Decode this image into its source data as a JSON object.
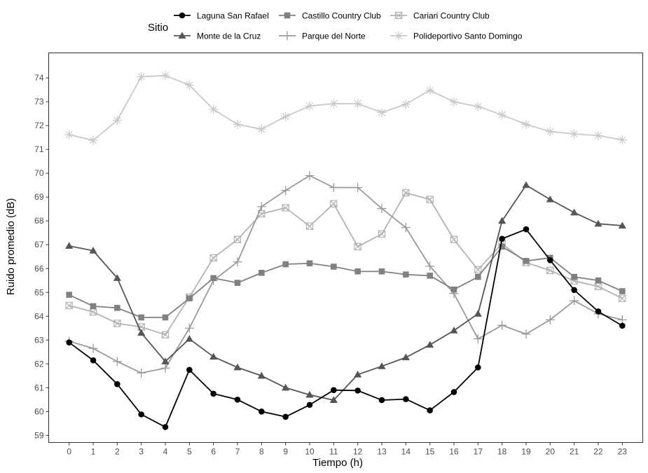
{
  "chart_data": {
    "type": "line",
    "title": "",
    "xlabel": "Tiempo (h)",
    "ylabel": "Ruido promedio (dB)",
    "legend_title": "Sitio",
    "legend_position": "top",
    "grid": false,
    "xlim": [
      -0.85,
      23.85
    ],
    "ylim": [
      58.7,
      75.05
    ],
    "x": [
      0,
      1,
      2,
      3,
      4,
      5,
      6,
      7,
      8,
      9,
      10,
      11,
      12,
      13,
      14,
      15,
      16,
      17,
      18,
      19,
      20,
      21,
      22,
      23
    ],
    "x_ticks": [
      "0",
      "1",
      "2",
      "3",
      "4",
      "5",
      "6",
      "7",
      "8",
      "9",
      "10",
      "11",
      "12",
      "13",
      "14",
      "15",
      "16",
      "17",
      "18",
      "19",
      "20",
      "21",
      "22",
      "23"
    ],
    "y_ticks": [
      "59",
      "60",
      "61",
      "62",
      "63",
      "64",
      "65",
      "66",
      "67",
      "68",
      "69",
      "70",
      "71",
      "72",
      "73",
      "74"
    ],
    "series": [
      {
        "name": "Laguna San Rafael",
        "color": "#000000",
        "marker": "circle",
        "values": [
          62.9,
          62.15,
          61.15,
          59.88,
          59.35,
          61.75,
          60.75,
          60.5,
          60.0,
          59.78,
          60.28,
          60.9,
          60.88,
          60.48,
          60.52,
          60.05,
          60.82,
          61.85,
          67.25,
          67.65,
          66.35,
          65.1,
          64.2,
          63.6
        ]
      },
      {
        "name": "Monte de la Cruz",
        "color": "#555555",
        "marker": "triangle",
        "values": [
          66.95,
          66.75,
          65.6,
          63.3,
          62.1,
          63.05,
          62.3,
          61.85,
          61.5,
          61.0,
          60.7,
          60.48,
          61.55,
          61.9,
          62.27,
          62.8,
          63.4,
          64.1,
          68.0,
          69.5,
          68.9,
          68.35,
          67.88,
          67.8
        ]
      },
      {
        "name": "Castillo Country Club",
        "color": "#808080",
        "marker": "square",
        "values": [
          64.9,
          64.42,
          64.35,
          63.95,
          63.95,
          64.75,
          65.6,
          65.4,
          65.82,
          66.18,
          66.22,
          66.08,
          65.88,
          65.88,
          65.75,
          65.7,
          65.12,
          65.65,
          66.92,
          66.32,
          66.45,
          65.65,
          65.5,
          65.05
        ]
      },
      {
        "name": "Parque del Norte",
        "color": "#9a9a9a",
        "marker": "plus",
        "values": [
          62.95,
          62.65,
          62.1,
          61.62,
          61.82,
          63.5,
          65.5,
          66.28,
          68.6,
          69.28,
          69.9,
          69.4,
          69.4,
          68.52,
          67.72,
          66.1,
          64.95,
          63.05,
          63.62,
          63.25,
          63.85,
          64.65,
          64.1,
          63.85
        ]
      },
      {
        "name": "Cariari Country Club",
        "color": "#b3b3b3",
        "marker": "square-x",
        "values": [
          64.45,
          64.18,
          63.7,
          63.55,
          63.22,
          64.8,
          66.45,
          67.22,
          68.3,
          68.55,
          67.78,
          68.72,
          66.92,
          67.45,
          69.18,
          68.9,
          67.22,
          65.95,
          67.05,
          66.25,
          65.92,
          65.48,
          65.25,
          64.75
        ]
      },
      {
        "name": "Polideportivo Santo Domingo",
        "color": "#c9c9c9",
        "marker": "asterisk",
        "values": [
          71.62,
          71.38,
          72.22,
          74.05,
          74.1,
          73.7,
          72.68,
          72.05,
          71.85,
          72.38,
          72.82,
          72.92,
          72.92,
          72.55,
          72.9,
          73.48,
          73.0,
          72.8,
          72.45,
          72.05,
          71.75,
          71.65,
          71.58,
          71.4
        ]
      }
    ]
  }
}
